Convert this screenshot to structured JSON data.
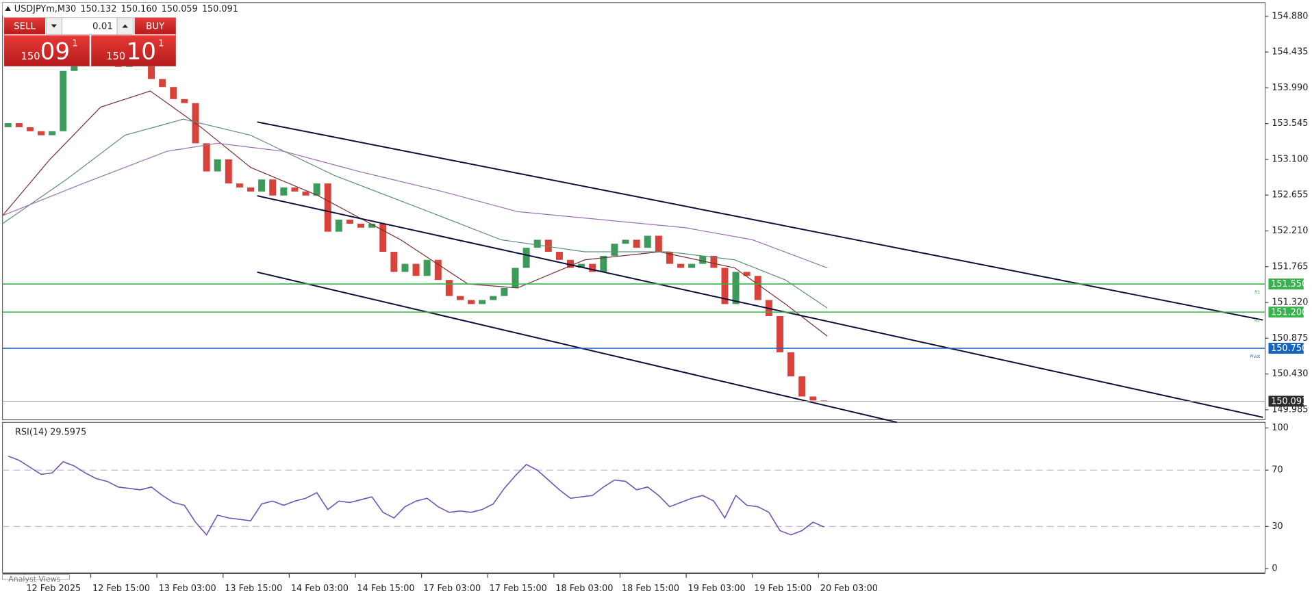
{
  "chart_data": [
    {
      "type": "candlestick",
      "title": "USDJPYm,M30",
      "quote": [
        "150.132",
        "150.160",
        "150.059",
        "150.091"
      ],
      "grid": false,
      "xlim": [
        -0.5,
        114
      ],
      "xticks": [
        {
          "value": 1.5,
          "label": "12 Feb 2025"
        },
        {
          "value": 7.5,
          "label": "12 Feb 15:00"
        },
        {
          "value": 13.5,
          "label": "13 Feb 03:00"
        },
        {
          "value": 19.5,
          "label": "13 Feb 15:00"
        },
        {
          "value": 25.5,
          "label": "14 Feb 03:00"
        },
        {
          "value": 31.5,
          "label": "14 Feb 15:00"
        },
        {
          "value": 37.5,
          "label": "17 Feb 03:00"
        },
        {
          "value": 43.5,
          "label": "17 Feb 15:00"
        },
        {
          "value": 49.5,
          "label": "18 Feb 03:00"
        },
        {
          "value": 55.5,
          "label": "18 Feb 15:00"
        },
        {
          "value": 61.5,
          "label": "19 Feb 03:00"
        },
        {
          "value": 67.5,
          "label": "19 Feb 15:00"
        },
        {
          "value": 73.5,
          "label": "20 Feb 03:00"
        }
      ],
      "ylim": [
        149.86,
        155.05
      ],
      "yticks": [
        {
          "value": 154.88,
          "label": "154.880"
        },
        154.435,
        {
          "value": 153.99,
          "label": "153.990"
        },
        153.545,
        {
          "value": 153.1,
          "label": "153.100"
        },
        152.655,
        {
          "value": 152.21,
          "label": "152.210"
        },
        151.765,
        {
          "value": 151.32,
          "label": "151.320"
        },
        150.875,
        {
          "value": 150.43,
          "label": "150.430"
        },
        149.985
      ],
      "up_color": "#3d9a5b",
      "down_color": "#d9423b",
      "open": [
        153.5,
        153.55,
        153.5,
        153.45,
        153.4,
        153.45,
        154.2,
        154.3,
        154.35,
        154.4,
        154.3,
        154.25,
        154.3,
        154.35,
        154.1,
        154.0,
        153.85,
        153.8,
        153.3,
        152.95,
        153.1,
        152.8,
        152.75,
        152.7,
        152.85,
        152.65,
        152.75,
        152.7,
        152.65,
        152.8,
        152.2,
        152.35,
        152.3,
        152.25,
        152.3,
        151.95,
        151.7,
        151.8,
        151.65,
        151.85,
        151.6,
        151.4,
        151.35,
        151.3,
        151.35,
        151.4,
        151.5,
        151.75,
        152.0,
        152.1,
        151.95,
        151.85,
        151.75,
        151.8,
        151.7,
        151.9,
        152.05,
        152.1,
        152.0,
        152.15,
        151.95,
        151.8,
        151.75,
        151.8,
        151.9,
        151.75,
        151.3,
        151.7,
        151.65,
        151.35,
        151.15,
        150.7,
        150.4,
        150.15,
        150.1
      ],
      "close": [
        153.55,
        153.5,
        153.45,
        153.4,
        153.45,
        154.2,
        154.3,
        154.35,
        154.4,
        154.3,
        154.25,
        154.3,
        154.35,
        154.1,
        154.0,
        153.85,
        153.8,
        153.3,
        152.95,
        153.1,
        152.8,
        152.75,
        152.7,
        152.85,
        152.65,
        152.75,
        152.7,
        152.65,
        152.8,
        152.2,
        152.35,
        152.3,
        152.25,
        152.3,
        151.95,
        151.7,
        151.8,
        151.65,
        151.85,
        151.6,
        151.4,
        151.35,
        151.3,
        151.35,
        151.4,
        151.5,
        151.75,
        152.0,
        152.1,
        151.95,
        151.85,
        151.75,
        151.8,
        151.7,
        151.9,
        152.05,
        152.1,
        152.0,
        152.15,
        151.95,
        151.8,
        151.75,
        151.8,
        151.9,
        151.75,
        151.3,
        151.7,
        151.65,
        151.35,
        151.15,
        150.7,
        150.4,
        150.15,
        150.1,
        150.091
      ],
      "series": [
        {
          "color": "#7a2f2f",
          "x": [
            -0.5,
            3.8,
            8.4,
            12.9,
            17.5,
            22,
            28.1,
            35.6,
            41.7,
            46.2,
            52.3,
            59.1,
            65.9,
            70.5,
            74.3
          ],
          "values": [
            152.4,
            153.1,
            153.75,
            153.95,
            153.5,
            153.0,
            152.65,
            152.1,
            151.55,
            151.5,
            151.85,
            151.95,
            151.75,
            151.3,
            150.9
          ]
        },
        {
          "color": "#5e8f7c",
          "x": [
            -0.5,
            5.3,
            10.6,
            15.9,
            22,
            29.6,
            37.2,
            44.7,
            52.3,
            59.9,
            65.9,
            70.5,
            74.3
          ],
          "values": [
            152.3,
            152.85,
            153.4,
            153.6,
            153.4,
            152.9,
            152.5,
            152.1,
            151.95,
            151.95,
            151.85,
            151.6,
            151.25
          ]
        },
        {
          "color": "#9b6fb0",
          "x": [
            -0.5,
            6.8,
            14.4,
            19,
            25,
            31.8,
            39.4,
            46.2,
            53.8,
            61.4,
            67.5,
            74.3
          ],
          "values": [
            152.4,
            152.8,
            153.2,
            153.3,
            153.2,
            152.95,
            152.7,
            152.45,
            152.35,
            152.25,
            152.1,
            151.75
          ]
        }
      ],
      "trendlines": [
        {
          "color": "#0d0d3a",
          "x": [
            22.6,
            113.8
          ],
          "values": [
            153.565,
            151.102
          ]
        },
        {
          "color": "#0d0d3a",
          "x": [
            22.6,
            113.8
          ],
          "values": [
            152.647,
            149.891
          ]
        },
        {
          "color": "#0d0d3a",
          "x": [
            22.6,
            80.6
          ],
          "values": [
            151.697,
            149.829
          ]
        }
      ],
      "levels": [
        {
          "name": "R1",
          "value": 151.55,
          "label": "151.550",
          "color": "#34b44a"
        },
        {
          "name": "R2",
          "value": 151.2,
          "label": "151.200",
          "color": "#34b44a"
        },
        {
          "name": "Pivot",
          "value": 150.75,
          "label": "150.750",
          "color": "#1565c0"
        },
        {
          "value": 150.091,
          "label": "150.091",
          "color": "#9e9e9e"
        }
      ]
    },
    {
      "type": "line",
      "title": "RSI(14) 29.5975",
      "ylim": [
        -3,
        104
      ],
      "yticks": [
        100,
        70,
        30,
        0
      ],
      "levels": [
        70,
        30
      ],
      "series": [
        {
          "color": "#6f52b5",
          "values": [
            80,
            77,
            72,
            67,
            68,
            76,
            73,
            68,
            64,
            62,
            58,
            57,
            56,
            58,
            52,
            47,
            45,
            33,
            24,
            38,
            36,
            35,
            34,
            46,
            48,
            45,
            48,
            50,
            54,
            42,
            48,
            47,
            49,
            51,
            40,
            36,
            44,
            48,
            50,
            44,
            40,
            41,
            40,
            42,
            46,
            57,
            66,
            74,
            70,
            63,
            56,
            50,
            51,
            52,
            58,
            63,
            62,
            56,
            58,
            52,
            44,
            47,
            50,
            52,
            48,
            36,
            52,
            45,
            44,
            40,
            27,
            24,
            27,
            33,
            29.5975
          ]
        }
      ]
    }
  ],
  "trade_panel": {
    "sell": "SELL",
    "buy": "BUY",
    "volume": "0.01",
    "sell_price": [
      "150",
      "09",
      "1"
    ],
    "buy_price": [
      "150",
      "10",
      "1"
    ]
  },
  "footer_tab": "Analyst Views"
}
